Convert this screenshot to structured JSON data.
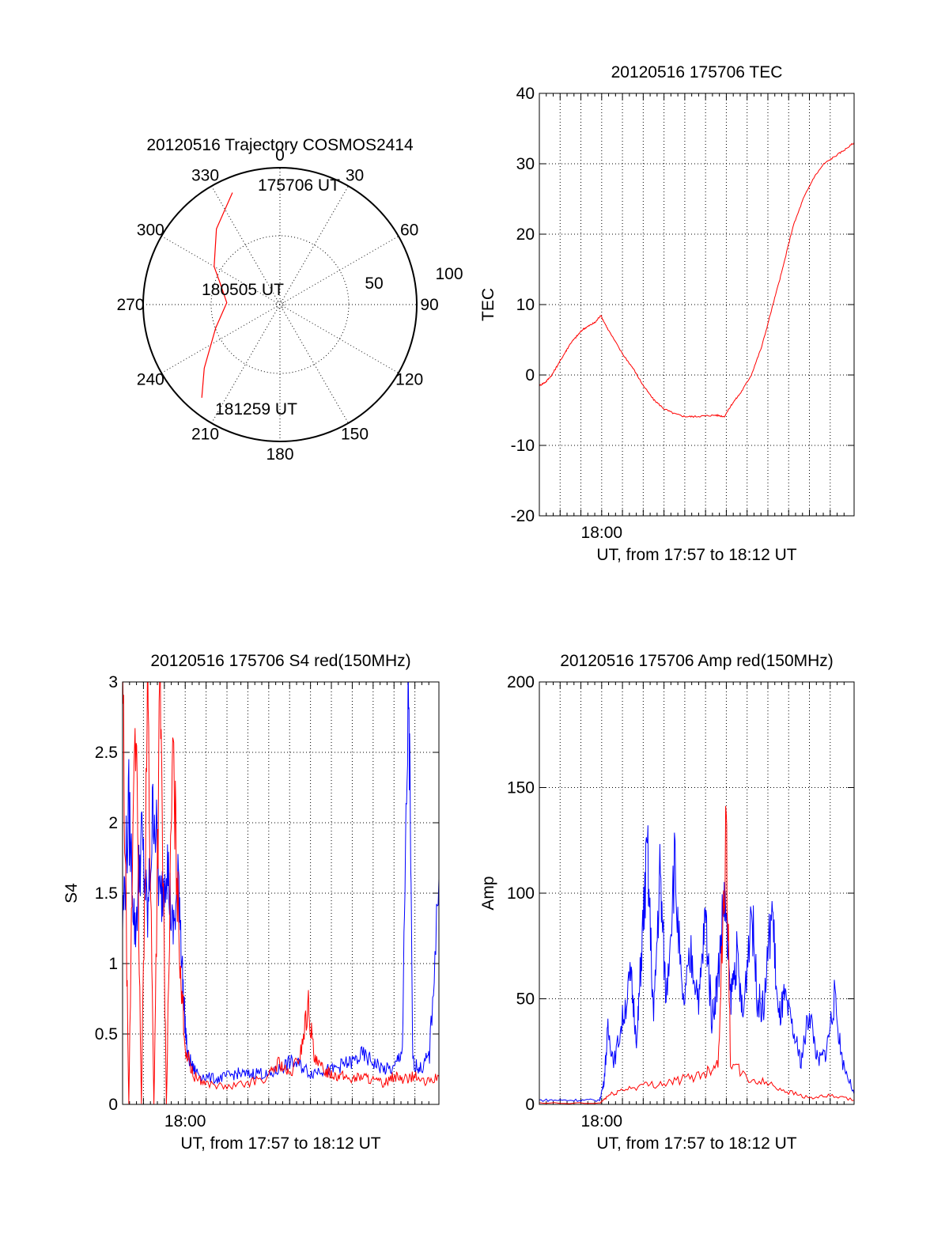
{
  "colors": {
    "red": "#ff0000",
    "blue": "#0000ff",
    "axis": "#000000"
  },
  "chart_data": [
    {
      "type": "polar",
      "title": "20120516 Trajectory COSMOS2414",
      "angle_labels": [
        "0",
        "30",
        "60",
        "90",
        "120",
        "150",
        "180",
        "210",
        "240",
        "270",
        "300",
        "330"
      ],
      "radial_labels": [
        "50",
        "100"
      ],
      "start_label": "175706 UT",
      "mid_label": "180505 UT",
      "end_label": "181259 UT",
      "track": [
        {
          "az": 337,
          "el": 10
        },
        {
          "az": 320,
          "el": 25
        },
        {
          "az": 300,
          "el": 40
        },
        {
          "az": 290,
          "el": 48
        },
        {
          "az": 272,
          "el": 55
        },
        {
          "az": 250,
          "el": 45
        },
        {
          "az": 230,
          "el": 25
        },
        {
          "az": 220,
          "el": 10
        }
      ],
      "series_color": "#ff0000"
    },
    {
      "type": "line",
      "title": "20120516 175706 TEC",
      "ylabel": "TEC",
      "xlabel": "UT, from 17:57 to 18:12 UT",
      "xtick_labels": [
        "18:00"
      ],
      "yticks": [
        "-20",
        "-10",
        "0",
        "10",
        "20",
        "30",
        "40"
      ],
      "ylim": [
        -20,
        40
      ],
      "xlim_minutes": [
        0,
        15.15
      ],
      "series": [
        {
          "color": "#ff0000",
          "points": [
            [
              0,
              -1.5
            ],
            [
              0.3,
              -1
            ],
            [
              0.6,
              0
            ],
            [
              0.9,
              1.5
            ],
            [
              1.2,
              3
            ],
            [
              1.5,
              4.5
            ],
            [
              1.8,
              5.5
            ],
            [
              2.1,
              6.5
            ],
            [
              2.4,
              7
            ],
            [
              2.7,
              7.5
            ],
            [
              2.95,
              8.5
            ],
            [
              3.3,
              6.5
            ],
            [
              4,
              3
            ],
            [
              4.5,
              1
            ],
            [
              5,
              -1.5
            ],
            [
              5.5,
              -3.5
            ],
            [
              6,
              -4.8
            ],
            [
              6.5,
              -5.5
            ],
            [
              7,
              -5.9
            ],
            [
              7.5,
              -5.9
            ],
            [
              8,
              -5.8
            ],
            [
              8.5,
              -5.7
            ],
            [
              8.9,
              -5.9
            ],
            [
              9.3,
              -4
            ],
            [
              9.7,
              -2.5
            ],
            [
              10.2,
              0
            ],
            [
              10.7,
              4
            ],
            [
              11.2,
              9.5
            ],
            [
              11.7,
              15
            ],
            [
              12.2,
              21
            ],
            [
              12.7,
              25
            ],
            [
              13.2,
              28
            ],
            [
              13.7,
              30
            ],
            [
              14.2,
              31
            ],
            [
              14.7,
              32
            ],
            [
              15.15,
              33
            ]
          ]
        }
      ]
    },
    {
      "type": "line",
      "title": "20120516 175706 S4 red(150MHz)",
      "ylabel": "S4",
      "xlabel": "UT, from 17:57 to 18:12 UT",
      "xtick_labels": [
        "18:00"
      ],
      "yticks": [
        "0",
        "0.5",
        "1",
        "1.5",
        "2",
        "2.5",
        "3"
      ],
      "ylim": [
        0,
        3
      ],
      "xlim_minutes": [
        0,
        15.15
      ],
      "series": [
        {
          "color": "#0000ff",
          "points": [
            [
              0,
              1.3
            ],
            [
              0.3,
              2.1
            ],
            [
              0.6,
              1.2
            ],
            [
              0.9,
              1.9
            ],
            [
              1.2,
              1.3
            ],
            [
              1.5,
              2.2
            ],
            [
              1.8,
              1.4
            ],
            [
              2.1,
              1.8
            ],
            [
              2.4,
              1.2
            ],
            [
              2.7,
              1.6
            ],
            [
              2.9,
              0.8
            ],
            [
              3.1,
              0.35
            ],
            [
              3.4,
              0.25
            ],
            [
              3.8,
              0.2
            ],
            [
              4.5,
              0.18
            ],
            [
              5,
              0.2
            ],
            [
              5.5,
              0.22
            ],
            [
              6,
              0.21
            ],
            [
              6.5,
              0.23
            ],
            [
              7,
              0.2
            ],
            [
              7.5,
              0.25
            ],
            [
              8,
              0.3
            ],
            [
              8.5,
              0.28
            ],
            [
              9,
              0.22
            ],
            [
              9.5,
              0.25
            ],
            [
              10,
              0.24
            ],
            [
              10.5,
              0.28
            ],
            [
              11,
              0.3
            ],
            [
              11.5,
              0.35
            ],
            [
              12,
              0.3
            ],
            [
              12.5,
              0.25
            ],
            [
              13,
              0.25
            ],
            [
              13.4,
              0.4
            ],
            [
              13.7,
              3.0
            ],
            [
              13.9,
              0.3
            ],
            [
              14.3,
              0.25
            ],
            [
              14.7,
              0.35
            ],
            [
              15.15,
              1.6
            ]
          ]
        },
        {
          "color": "#ff0000",
          "points": [
            [
              0,
              3
            ],
            [
              0.3,
              0
            ],
            [
              0.6,
              3
            ],
            [
              0.9,
              0
            ],
            [
              1.2,
              3
            ],
            [
              1.5,
              0
            ],
            [
              1.8,
              3
            ],
            [
              2.1,
              0
            ],
            [
              2.4,
              2.5
            ],
            [
              2.7,
              1.2
            ],
            [
              3.0,
              0.4
            ],
            [
              3.4,
              0.2
            ],
            [
              4,
              0.15
            ],
            [
              5,
              0.12
            ],
            [
              6,
              0.15
            ],
            [
              7,
              0.2
            ],
            [
              7.5,
              0.3
            ],
            [
              8,
              0.2
            ],
            [
              8.5,
              0.35
            ],
            [
              8.9,
              0.7
            ],
            [
              9.2,
              0.3
            ],
            [
              9.6,
              0.25
            ],
            [
              10,
              0.22
            ],
            [
              10.5,
              0.2
            ],
            [
              11,
              0.18
            ],
            [
              11.5,
              0.2
            ],
            [
              12,
              0.17
            ],
            [
              12.5,
              0.15
            ],
            [
              13,
              0.2
            ],
            [
              13.5,
              0.18
            ],
            [
              14,
              0.2
            ],
            [
              14.5,
              0.15
            ],
            [
              15.15,
              0.2
            ]
          ]
        }
      ]
    },
    {
      "type": "line",
      "title": "20120516 175706 Amp red(150MHz)",
      "ylabel": "Amp",
      "xlabel": "UT, from 17:57 to 18:12 UT",
      "xtick_labels": [
        "18:00"
      ],
      "yticks": [
        "0",
        "50",
        "100",
        "150",
        "200"
      ],
      "ylim": [
        0,
        200
      ],
      "xlim_minutes": [
        0,
        15.15
      ],
      "series": [
        {
          "color": "#0000ff",
          "points": [
            [
              0,
              2
            ],
            [
              1,
              2
            ],
            [
              2,
              2
            ],
            [
              2.9,
              2
            ],
            [
              3.1,
              10
            ],
            [
              3.3,
              35
            ],
            [
              3.6,
              20
            ],
            [
              4,
              40
            ],
            [
              4.4,
              60
            ],
            [
              4.7,
              30
            ],
            [
              4.9,
              70
            ],
            [
              5.2,
              120
            ],
            [
              5.5,
              40
            ],
            [
              5.8,
              110
            ],
            [
              6.1,
              50
            ],
            [
              6.5,
              115
            ],
            [
              6.9,
              45
            ],
            [
              7.3,
              70
            ],
            [
              7.7,
              50
            ],
            [
              8,
              90
            ],
            [
              8.3,
              40
            ],
            [
              8.6,
              60
            ],
            [
              8.9,
              100
            ],
            [
              9.2,
              50
            ],
            [
              9.5,
              70
            ],
            [
              9.8,
              40
            ],
            [
              10.2,
              95
            ],
            [
              10.5,
              50
            ],
            [
              10.8,
              45
            ],
            [
              11.2,
              95
            ],
            [
              11.5,
              40
            ],
            [
              11.8,
              50
            ],
            [
              12.2,
              35
            ],
            [
              12.6,
              20
            ],
            [
              13,
              45
            ],
            [
              13.4,
              20
            ],
            [
              13.8,
              25
            ],
            [
              14.2,
              50
            ],
            [
              14.6,
              20
            ],
            [
              15.15,
              5
            ]
          ]
        },
        {
          "color": "#ff0000",
          "points": [
            [
              0,
              0.5
            ],
            [
              2.9,
              0.5
            ],
            [
              3.3,
              4
            ],
            [
              4,
              7
            ],
            [
              5,
              9
            ],
            [
              6,
              10
            ],
            [
              7,
              12
            ],
            [
              8,
              15
            ],
            [
              8.6,
              20
            ],
            [
              9.0,
              130
            ],
            [
              9.2,
              20
            ],
            [
              10,
              12
            ],
            [
              11,
              10
            ],
            [
              12,
              6
            ],
            [
              13,
              3
            ],
            [
              14,
              4
            ],
            [
              15.15,
              2
            ]
          ]
        }
      ]
    }
  ]
}
